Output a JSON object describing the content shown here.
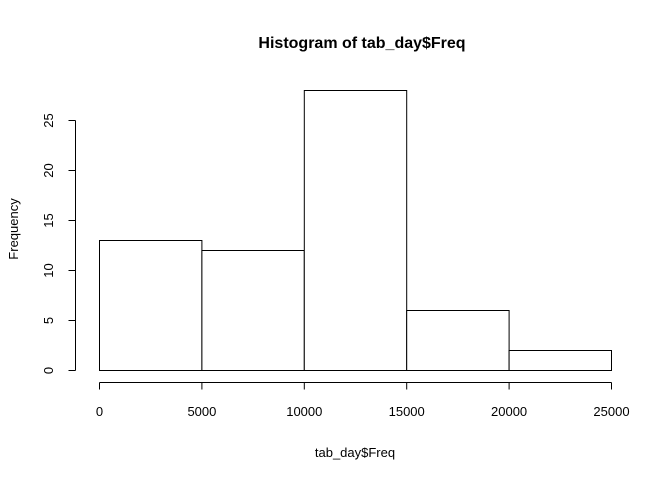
{
  "chart_data": {
    "type": "histogram",
    "title": "Histogram of tab_day$Freq",
    "xlabel": "tab_day$Freq",
    "ylabel": "Frequency",
    "bins": [
      {
        "start": 0,
        "end": 5000,
        "count": 13
      },
      {
        "start": 5000,
        "end": 10000,
        "count": 12
      },
      {
        "start": 10000,
        "end": 15000,
        "count": 28
      },
      {
        "start": 15000,
        "end": 20000,
        "count": 6
      },
      {
        "start": 20000,
        "end": 25000,
        "count": 2
      }
    ],
    "xticks": [
      0,
      5000,
      10000,
      15000,
      20000,
      25000
    ],
    "yticks": [
      0,
      5,
      10,
      15,
      20,
      25
    ],
    "xlim": [
      0,
      25000
    ],
    "ylim": [
      0,
      28
    ],
    "grid": false,
    "colors": {
      "bar_fill": "#ffffff",
      "bar_stroke": "#000000"
    }
  }
}
